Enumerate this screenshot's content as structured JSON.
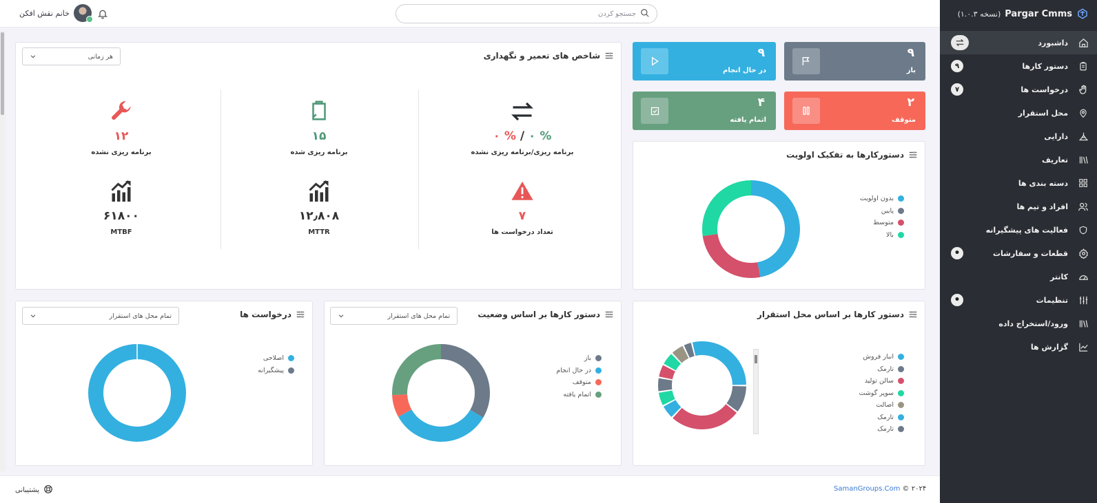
{
  "app": {
    "name": "Pargar Cmms",
    "version": "(نسخه ۱.۰.۳)"
  },
  "sidebar": {
    "items": [
      {
        "label": "داشبورد",
        "icon": "home-icon",
        "active": true
      },
      {
        "label": "دستور کارها",
        "icon": "clipboard-icon",
        "badge": "۹"
      },
      {
        "label": "درخواست ها",
        "icon": "hand-icon",
        "badge": "۷"
      },
      {
        "label": "محل استقرار",
        "icon": "location-icon"
      },
      {
        "label": "دارایی",
        "icon": "asset-icon"
      },
      {
        "label": "تعاریف",
        "icon": "library-icon"
      },
      {
        "label": "دسته بندی ها",
        "icon": "grid-icon"
      },
      {
        "label": "افراد و تیم ها",
        "icon": "people-icon"
      },
      {
        "label": "فعالیت های پیشگیرانه",
        "icon": "shield-icon"
      },
      {
        "label": "قطعات و سفارشات",
        "icon": "gear-icon"
      },
      {
        "label": "کانتر",
        "icon": "gauge-icon"
      },
      {
        "label": "تنظیمات",
        "icon": "sliders-icon"
      },
      {
        "label": "ورود/استخراج داده",
        "icon": "library-icon"
      },
      {
        "label": "گزارش ها",
        "icon": "chart-line-icon"
      }
    ]
  },
  "topbar": {
    "search_placeholder": "جستجو کردن",
    "user_name": "خانم نقش افکن"
  },
  "tiles": [
    {
      "value": "۹",
      "label": "باز",
      "color": "#6c7a89",
      "icon": "flag-icon"
    },
    {
      "value": "۹",
      "label": "در حال انجام",
      "color": "#33b0e0",
      "icon": "play-icon"
    },
    {
      "value": "۲",
      "label": "متوقف",
      "color": "#f76859",
      "icon": "pause-icon"
    },
    {
      "value": "۴",
      "label": "اتمام یافته",
      "color": "#67a07f",
      "icon": "check-box-icon"
    }
  ],
  "kpi_card": {
    "title": "شاخص های تعمیر و نگهداری",
    "filter": "هر زمانی",
    "items": [
      {
        "value_a": "۰ %",
        "sep": "/",
        "value_b": "۰ %",
        "label": "برنامه ریزی/برنامه ریزی نشده",
        "icon": "swap-icon"
      },
      {
        "value": "۱۵",
        "label": "برنامه ریزی شده",
        "icon": "clipboard-icon",
        "color": "#4f9a79"
      },
      {
        "value": "۱۲",
        "label": "برنامه ریزی نشده",
        "icon": "wrench-icon",
        "color": "#e85757"
      },
      {
        "value": "۷",
        "label": "تعداد درخواست ها",
        "icon": "warning-icon",
        "color": "#e85757"
      },
      {
        "value": "۱۲٫۸۰۸",
        "label": "MTTR",
        "icon": "growth-icon",
        "color": "#333"
      },
      {
        "value": "۶۱۸۰۰",
        "label": "MTBF",
        "icon": "growth-icon",
        "color": "#333"
      }
    ]
  },
  "priority_card": {
    "title": "دستورکارها به تفکیک اولویت",
    "legend": [
      {
        "label": "بدون اولویت",
        "color": "#33b0e0"
      },
      {
        "label": "پایین",
        "color": "#6c7a89"
      },
      {
        "label": "متوسط",
        "color": "#d4506b"
      },
      {
        "label": "بالا",
        "color": "#1fd8a4"
      }
    ]
  },
  "location_card": {
    "title": "دستور کارها بر اساس محل استقرار",
    "legend": [
      {
        "label": "انبار فروش",
        "color": "#33b0e0"
      },
      {
        "label": "تارمک",
        "color": "#6c7a89"
      },
      {
        "label": "سالن تولید",
        "color": "#d4506b"
      },
      {
        "label": "سوپر گوشت",
        "color": "#1fd8a4"
      },
      {
        "label": "اصالت",
        "color": "#9a9583"
      },
      {
        "label": "تارمک",
        "color": "#33b0e0"
      },
      {
        "label": "تارمک",
        "color": "#6c7a89"
      }
    ]
  },
  "status_card": {
    "title": "دستور کارها بر اساس وضعیت",
    "filter": "تمام محل های استقرار",
    "legend": [
      {
        "label": "باز",
        "color": "#6c7a89"
      },
      {
        "label": "در حال انجام",
        "color": "#33b0e0"
      },
      {
        "label": "متوقف",
        "color": "#f76859"
      },
      {
        "label": "اتمام یافته",
        "color": "#67a07f"
      }
    ]
  },
  "requests_card": {
    "title": "درخواست ها",
    "filter": "تمام محل های استقرار",
    "legend": [
      {
        "label": "اصلاحی",
        "color": "#33b0e0"
      },
      {
        "label": "پیشگیرانه",
        "color": "#6c7a89"
      }
    ]
  },
  "footer": {
    "copyright": "© ۲۰۲۴",
    "link": "SamanGroups.Com",
    "support": "پشتیبانی"
  }
}
